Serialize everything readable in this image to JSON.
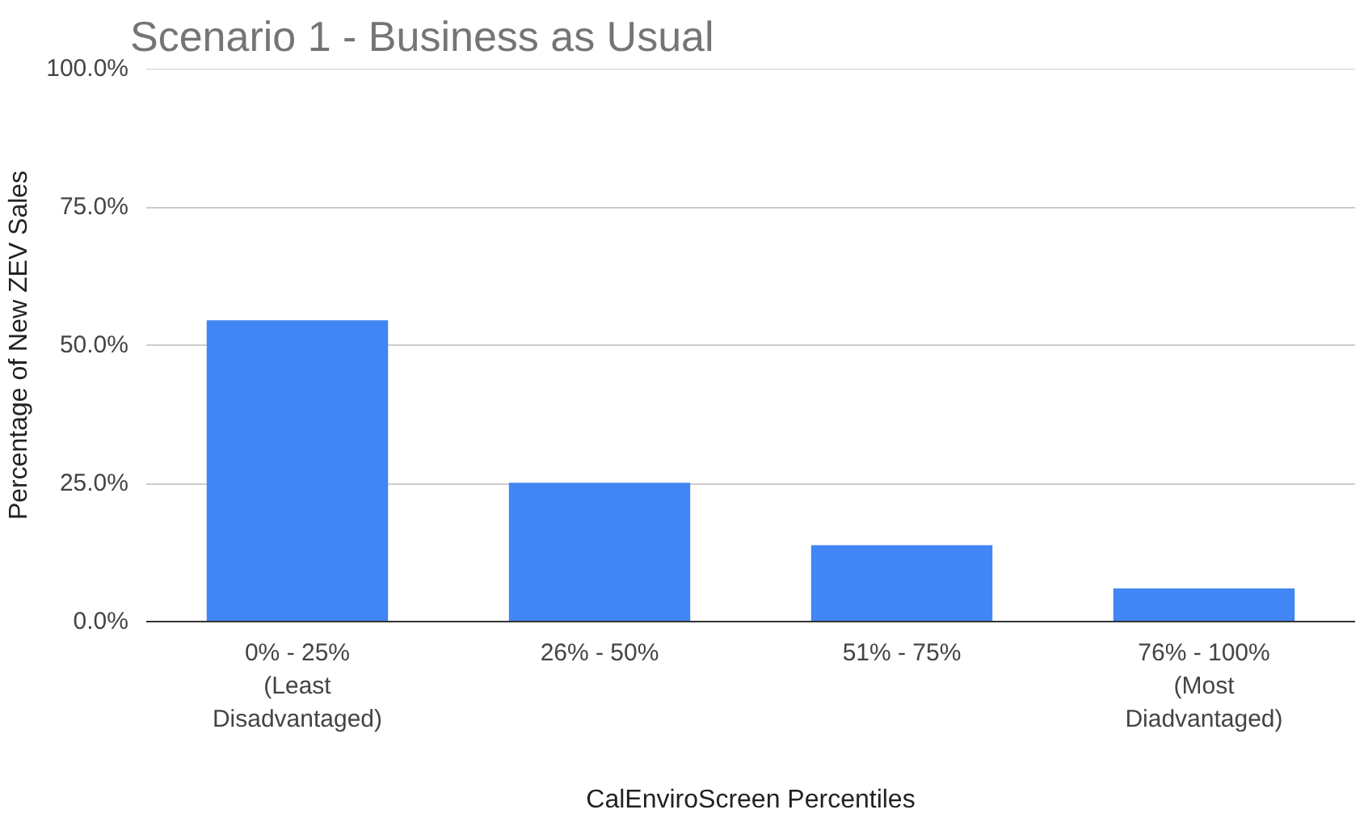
{
  "chart_data": {
    "type": "bar",
    "title": "Scenario 1 - Business as Usual",
    "xlabel": "CalEnviroScreen Percentiles",
    "ylabel": "Percentage of New ZEV Sales",
    "categories": [
      "0% - 25% (Least Disadvantaged)",
      "26% - 50%",
      "51% - 75%",
      "76% - 100% (Most Diadvantaged)"
    ],
    "values": [
      54.5,
      25.1,
      13.8,
      6.0
    ],
    "color": "#4285f4",
    "ylim": [
      0,
      100
    ],
    "yticks": [
      {
        "value": 0,
        "label": "0.0%"
      },
      {
        "value": 25,
        "label": "25.0%"
      },
      {
        "value": 50,
        "label": "50.0%"
      },
      {
        "value": 75,
        "label": "75.0%"
      },
      {
        "value": 100,
        "label": "100.0%"
      }
    ],
    "grid": "y"
  }
}
